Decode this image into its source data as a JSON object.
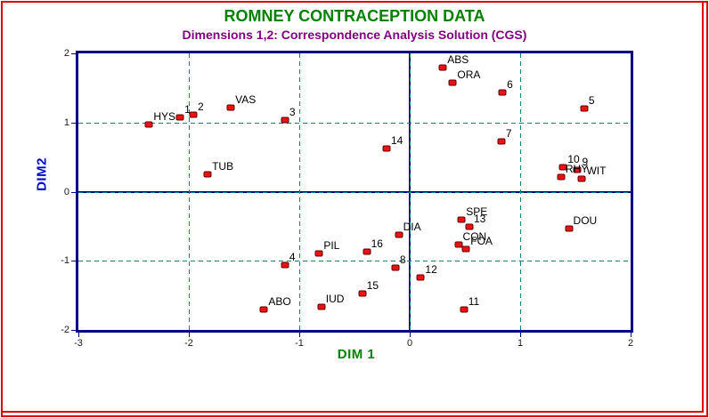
{
  "window": {
    "background": "#ffffff",
    "border_color": "#dd0000"
  },
  "header": {
    "title": "ROMNEY CONTRACEPTION DATA",
    "title_color": "#008000",
    "subtitle": "Dimensions 1,2: Correspondence Analysis Solution (CGS)",
    "subtitle_color": "#800080"
  },
  "axes": {
    "x_title": "DIM 1",
    "x_title_color": "#008000",
    "y_title": "DIM2",
    "y_title_color": "#0000cd",
    "frame_color": "#000080",
    "tick_label_color": "#1a1a1a"
  },
  "chart_data": {
    "type": "scatter",
    "title": "ROMNEY CONTRACEPTION DATA",
    "subtitle": "Dimensions 1,2: Correspondence Analysis Solution (CGS)",
    "xlabel": "DIM 1",
    "ylabel": "DIM2",
    "xlim": [
      -3,
      2
    ],
    "ylim": [
      -2,
      2
    ],
    "x_ticks": [
      -3,
      -2,
      -1,
      0,
      1,
      2
    ],
    "x_tick_labels": [
      "-3",
      "-2",
      "-1",
      "0",
      "1",
      "2"
    ],
    "y_ticks": [
      2,
      1,
      0,
      -1,
      -2
    ],
    "y_tick_labels": [
      "2",
      "1",
      "0",
      "-1",
      "-2"
    ],
    "grid": {
      "dashed_x": [
        -2,
        -1,
        0,
        1
      ],
      "dashed_y": [
        -1,
        0,
        1
      ],
      "solid_x": [
        0
      ],
      "solid_y": [
        0
      ],
      "dash_color": "#008080",
      "solid_color": "#000080"
    },
    "marker": {
      "shape": "rounded-square",
      "fill": "#ee1111",
      "outline": "#5a0000"
    },
    "legend": "none",
    "points": [
      {
        "label": "HYS",
        "x": -2.36,
        "y": 0.97
      },
      {
        "label": "1",
        "x": -2.08,
        "y": 1.08
      },
      {
        "label": "2",
        "x": -1.96,
        "y": 1.11
      },
      {
        "label": "VAS",
        "x": -1.62,
        "y": 1.21
      },
      {
        "label": "3",
        "x": -1.13,
        "y": 1.03
      },
      {
        "label": "TUB",
        "x": -1.83,
        "y": 0.25
      },
      {
        "label": "ABS",
        "x": 0.3,
        "y": 1.79
      },
      {
        "label": "ORA",
        "x": 0.39,
        "y": 1.58
      },
      {
        "label": "6",
        "x": 0.84,
        "y": 1.44
      },
      {
        "label": "5",
        "x": 1.58,
        "y": 1.2
      },
      {
        "label": "7",
        "x": 0.83,
        "y": 0.73
      },
      {
        "label": "14",
        "x": -0.21,
        "y": 0.62
      },
      {
        "label": "10",
        "x": 1.39,
        "y": 0.35
      },
      {
        "label": "9",
        "x": 1.52,
        "y": 0.32
      },
      {
        "label": "RHY",
        "x": 1.37,
        "y": 0.21
      },
      {
        "label": "WIT",
        "x": 1.56,
        "y": 0.19
      },
      {
        "label": "SPE",
        "x": 0.47,
        "y": -0.4
      },
      {
        "label": "13",
        "x": 0.54,
        "y": -0.51
      },
      {
        "label": "DOU",
        "x": 1.44,
        "y": -0.53
      },
      {
        "label": "DIA",
        "x": -0.1,
        "y": -0.63
      },
      {
        "label": "CON",
        "x": 0.44,
        "y": -0.77
      },
      {
        "label": "FOA",
        "x": 0.51,
        "y": -0.83
      },
      {
        "label": "16",
        "x": -0.39,
        "y": -0.87
      },
      {
        "label": "PIL",
        "x": -0.82,
        "y": -0.89
      },
      {
        "label": "4",
        "x": -1.13,
        "y": -1.06
      },
      {
        "label": "8",
        "x": -0.13,
        "y": -1.1
      },
      {
        "label": "12",
        "x": 0.1,
        "y": -1.24
      },
      {
        "label": "15",
        "x": -0.43,
        "y": -1.47
      },
      {
        "label": "IUD",
        "x": -0.8,
        "y": -1.67
      },
      {
        "label": "ABO",
        "x": -1.32,
        "y": -1.7
      },
      {
        "label": "11",
        "x": 0.49,
        "y": -1.71
      }
    ]
  }
}
